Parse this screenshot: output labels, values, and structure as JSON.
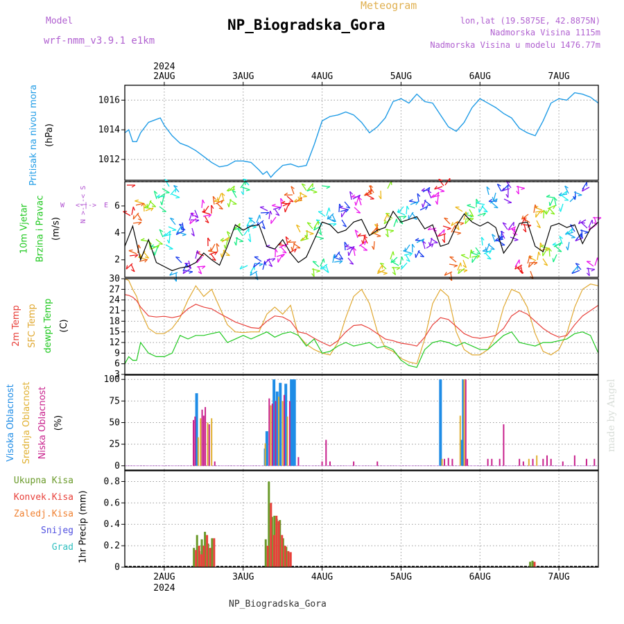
{
  "header": {
    "model_label": "Model",
    "model_name": "wrf-nmm_v3.9.1 e1km",
    "product": "Meteogram",
    "station": "NP_Biogradska_Gora",
    "coords": "lon,lat (19.5875E, 42.8875N)",
    "elevation": "Nadmorska Visina 1115m",
    "model_elevation": "Nadmorska Visina u modelu 1476.77m",
    "watermark": "made by Angel",
    "footer_station": "NP_Biogradska_Gora"
  },
  "colors": {
    "pressure": "#1e9be6",
    "temp": "#e8403a",
    "sfc_temp": "#e0a830",
    "dewpt": "#1ec81e",
    "high_cloud": "#1e8ce6",
    "mid_cloud": "#e0b030",
    "low_cloud": "#c8208c",
    "total_precip": "#6a9a2a",
    "conv_precip": "#e8403a",
    "frozen": "#f08030",
    "snow": "#5050e0",
    "graupel": "#30c0c0"
  },
  "chart_data": [
    {
      "type": "line",
      "panel": "pressure",
      "ylabel": [
        "Pritisak na nivou mora",
        "(hPa)"
      ],
      "top_axis": {
        "year": "2024",
        "ticks": [
          "2AUG",
          "3AUG",
          "4AUG",
          "5AUG",
          "6AUG",
          "7AUG"
        ]
      },
      "ylim": [
        1010.6,
        1017.0
      ],
      "yticks": [
        1012,
        1014,
        1016
      ],
      "x": [
        1.5,
        1.55,
        1.6,
        1.65,
        1.7,
        1.8,
        1.9,
        1.95,
        2.0,
        2.1,
        2.2,
        2.3,
        2.4,
        2.5,
        2.6,
        2.7,
        2.8,
        2.9,
        3.0,
        3.1,
        3.2,
        3.25,
        3.3,
        3.35,
        3.4,
        3.5,
        3.6,
        3.7,
        3.8,
        3.9,
        4.0,
        4.1,
        4.2,
        4.3,
        4.4,
        4.5,
        4.6,
        4.7,
        4.8,
        4.9,
        5.0,
        5.1,
        5.2,
        5.3,
        5.4,
        5.5,
        5.6,
        5.7,
        5.8,
        5.9,
        6.0,
        6.1,
        6.2,
        6.3,
        6.4,
        6.5,
        6.6,
        6.7,
        6.8,
        6.9,
        7.0,
        7.1,
        7.2,
        7.3,
        7.4,
        7.5
      ],
      "series": [
        {
          "values": [
            1013.8,
            1014.0,
            1013.2,
            1013.2,
            1013.8,
            1014.5,
            1014.7,
            1014.8,
            1014.3,
            1013.6,
            1013.1,
            1012.9,
            1012.6,
            1012.2,
            1011.8,
            1011.5,
            1011.6,
            1011.9,
            1011.9,
            1011.8,
            1011.3,
            1011.0,
            1011.2,
            1010.8,
            1011.1,
            1011.6,
            1011.7,
            1011.5,
            1011.6,
            1013.0,
            1014.6,
            1014.9,
            1015.0,
            1015.2,
            1015.0,
            1014.5,
            1013.8,
            1014.2,
            1014.8,
            1015.9,
            1016.1,
            1015.8,
            1016.4,
            1015.9,
            1015.8,
            1015.0,
            1014.2,
            1013.9,
            1014.5,
            1015.5,
            1016.1,
            1015.8,
            1015.5,
            1015.1,
            1014.8,
            1014.1,
            1013.8,
            1013.6,
            1014.6,
            1015.8,
            1016.1,
            1016.0,
            1016.5,
            1016.4,
            1016.2,
            1015.8
          ]
        }
      ]
    },
    {
      "type": "line",
      "panel": "wind",
      "ylabel": [
        "10m Vjetar",
        "Brzina i Pravac",
        "(m/s)"
      ],
      "compass": [
        "W",
        "E",
        "N",
        "S"
      ],
      "ylim": [
        0.7,
        7.8
      ],
      "yticks": [
        2,
        4,
        6
      ],
      "x": [
        1.5,
        1.6,
        1.7,
        1.8,
        1.9,
        2.0,
        2.1,
        2.2,
        2.3,
        2.4,
        2.5,
        2.6,
        2.7,
        2.8,
        2.9,
        3.0,
        3.1,
        3.2,
        3.3,
        3.4,
        3.5,
        3.6,
        3.7,
        3.8,
        3.9,
        4.0,
        4.1,
        4.2,
        4.3,
        4.4,
        4.5,
        4.6,
        4.7,
        4.8,
        4.9,
        5.0,
        5.1,
        5.2,
        5.3,
        5.4,
        5.5,
        5.6,
        5.7,
        5.8,
        5.9,
        6.0,
        6.1,
        6.2,
        6.3,
        6.4,
        6.5,
        6.6,
        6.7,
        6.8,
        6.9,
        7.0,
        7.1,
        7.2,
        7.3,
        7.4,
        7.5
      ],
      "series": [
        {
          "name": "speed",
          "values": [
            3.0,
            4.5,
            2.0,
            3.5,
            1.8,
            1.5,
            1.2,
            1.4,
            1.5,
            1.8,
            2.5,
            2.0,
            1.6,
            3.0,
            4.6,
            4.2,
            4.5,
            4.6,
            3.0,
            2.8,
            3.5,
            2.5,
            1.8,
            2.2,
            3.5,
            4.8,
            4.6,
            4.0,
            4.2,
            4.8,
            5.0,
            3.8,
            4.2,
            4.4,
            5.6,
            4.8,
            5.0,
            5.2,
            4.3,
            4.6,
            3.0,
            3.2,
            4.5,
            5.4,
            4.8,
            4.5,
            4.8,
            4.4,
            2.5,
            3.3,
            4.7,
            4.8,
            3.0,
            2.6,
            4.5,
            4.7,
            4.4,
            4.6,
            3.2,
            4.3,
            4.8
          ]
        }
      ]
    },
    {
      "type": "line",
      "panel": "temperature",
      "ylabel": [
        "2m Temp",
        "SFC Temp",
        "dewpt Temp",
        "(C)"
      ],
      "ylim": [
        3,
        30
      ],
      "yticks": [
        3,
        6,
        9,
        12,
        15,
        18,
        21,
        24,
        27,
        30
      ],
      "x": [
        1.5,
        1.55,
        1.6,
        1.65,
        1.7,
        1.8,
        1.9,
        2.0,
        2.1,
        2.2,
        2.3,
        2.4,
        2.5,
        2.6,
        2.7,
        2.8,
        2.9,
        3.0,
        3.1,
        3.2,
        3.3,
        3.4,
        3.5,
        3.6,
        3.7,
        3.8,
        3.9,
        4.0,
        4.1,
        4.2,
        4.3,
        4.4,
        4.5,
        4.6,
        4.7,
        4.8,
        4.9,
        5.0,
        5.1,
        5.2,
        5.3,
        5.4,
        5.5,
        5.6,
        5.7,
        5.8,
        5.9,
        6.0,
        6.1,
        6.2,
        6.3,
        6.4,
        6.5,
        6.6,
        6.7,
        6.8,
        6.9,
        7.0,
        7.1,
        7.2,
        7.3,
        7.4,
        7.5
      ],
      "series": [
        {
          "name": "2m Temp",
          "values": [
            25.5,
            25.3,
            24.8,
            23.8,
            22.0,
            19.5,
            19.2,
            19.4,
            19.0,
            19.5,
            21.5,
            22.8,
            22.0,
            21.5,
            20.2,
            19.0,
            17.8,
            17.0,
            16.2,
            16.0,
            18.0,
            19.5,
            19.2,
            18.0,
            15.0,
            14.5,
            13.2,
            12.0,
            11.0,
            12.5,
            15.0,
            16.8,
            17.0,
            16.0,
            14.5,
            13.0,
            12.5,
            11.8,
            11.5,
            11.0,
            13.5,
            17.0,
            19.0,
            18.5,
            16.5,
            14.5,
            13.5,
            13.2,
            13.5,
            14.0,
            16.0,
            19.5,
            21.0,
            20.0,
            18.0,
            16.0,
            14.5,
            13.5,
            14.0,
            17.0,
            19.5,
            21.0,
            22.5
          ]
        },
        {
          "name": "SFC Temp",
          "values": [
            30.0,
            29.5,
            27.0,
            25.0,
            21.0,
            16.0,
            14.5,
            14.5,
            16.0,
            19.0,
            24.0,
            28.0,
            25.0,
            27.0,
            22.0,
            17.0,
            15.0,
            14.8,
            15.0,
            15.0,
            20.0,
            22.0,
            20.0,
            22.5,
            14.0,
            11.5,
            10.0,
            9.0,
            8.5,
            12.0,
            19.0,
            25.0,
            27.0,
            23.0,
            15.0,
            10.5,
            9.5,
            7.5,
            6.5,
            6.0,
            13.0,
            23.0,
            27.0,
            25.0,
            15.0,
            10.0,
            8.5,
            8.5,
            10.0,
            14.0,
            22.0,
            27.0,
            26.0,
            22.0,
            14.5,
            9.5,
            8.5,
            10.0,
            14.5,
            22.0,
            27.0,
            28.5,
            28.0
          ]
        },
        {
          "name": "dewpt Temp",
          "values": [
            6.0,
            8.0,
            7.0,
            7.0,
            12.0,
            9.0,
            8.0,
            8.0,
            9.0,
            14.0,
            13.0,
            14.0,
            14.0,
            14.5,
            15.0,
            12.0,
            13.0,
            14.0,
            13.0,
            14.0,
            15.0,
            13.5,
            14.5,
            15.0,
            14.0,
            11.0,
            13.0,
            9.0,
            9.5,
            11.0,
            12.0,
            11.0,
            11.5,
            12.0,
            10.5,
            11.0,
            10.0,
            7.0,
            5.5,
            5.0,
            10.0,
            12.0,
            12.5,
            12.0,
            11.0,
            12.0,
            11.0,
            10.0,
            10.0,
            12.0,
            14.0,
            15.0,
            12.0,
            11.5,
            11.0,
            12.0,
            12.0,
            12.5,
            13.0,
            14.5,
            15.0,
            14.0,
            9.0
          ]
        }
      ]
    },
    {
      "type": "bar",
      "panel": "cloud_cover",
      "ylabel": [
        "Visoka Oblacnost",
        "Srednja Oblacnost",
        "Niska Oblacnost",
        "(%)"
      ],
      "ylim": [
        -5,
        105
      ],
      "yticks": [
        0,
        25,
        50,
        75,
        100
      ],
      "x": [
        2.37,
        2.39,
        2.41,
        2.43,
        2.46,
        2.48,
        2.5,
        2.52,
        2.55,
        2.57,
        2.6,
        2.62,
        2.64,
        3.28,
        3.3,
        3.33,
        3.35,
        3.37,
        3.39,
        3.41,
        3.43,
        3.45,
        3.47,
        3.5,
        3.52,
        3.54,
        3.56,
        3.59,
        3.61,
        3.63,
        3.65,
        3.7,
        4.0,
        4.05,
        4.1,
        4.4,
        4.7,
        5.5,
        5.52,
        5.55,
        5.6,
        5.65,
        5.75,
        5.77,
        5.79,
        5.8,
        5.82,
        5.84,
        6.1,
        6.15,
        6.25,
        6.3,
        6.5,
        6.55,
        6.62,
        6.67,
        6.72,
        6.8,
        6.85,
        6.9,
        7.05,
        7.2,
        7.35,
        7.45
      ],
      "series": [
        {
          "name": "Visoka Oblacnost",
          "values": [
            0,
            0,
            84,
            0,
            0,
            0,
            0,
            0,
            0,
            0,
            0,
            0,
            0,
            20,
            40,
            0,
            0,
            0,
            100,
            0,
            86,
            0,
            96,
            0,
            0,
            95,
            0,
            0,
            100,
            100,
            100,
            0,
            0,
            0,
            0,
            0,
            0,
            100,
            0,
            0,
            0,
            0,
            0,
            30,
            100,
            0,
            0,
            0,
            0,
            0,
            0,
            0,
            0,
            0,
            0,
            0,
            0,
            0,
            0,
            0,
            0,
            0,
            0,
            0
          ]
        },
        {
          "name": "Srednja Oblacnost",
          "values": [
            0,
            0,
            0,
            33,
            55,
            0,
            0,
            0,
            50,
            0,
            55,
            0,
            0,
            26,
            0,
            0,
            70,
            0,
            0,
            0,
            0,
            80,
            0,
            75,
            0,
            0,
            57,
            0,
            0,
            0,
            0,
            0,
            0,
            0,
            0,
            0,
            0,
            0,
            8,
            0,
            0,
            0,
            58,
            0,
            0,
            100,
            0,
            0,
            0,
            0,
            0,
            0,
            0,
            0,
            8,
            0,
            12,
            0,
            0,
            0,
            0,
            0,
            0,
            0
          ]
        },
        {
          "name": "Niska Oblacnost",
          "values": [
            53,
            57,
            0,
            0,
            0,
            65,
            58,
            68,
            0,
            48,
            0,
            0,
            5,
            0,
            0,
            78,
            0,
            72,
            0,
            75,
            0,
            0,
            0,
            0,
            82,
            0,
            0,
            75,
            0,
            0,
            0,
            10,
            5,
            30,
            5,
            5,
            5,
            0,
            0,
            8,
            9,
            8,
            0,
            0,
            0,
            0,
            100,
            8,
            8,
            8,
            8,
            48,
            8,
            5,
            0,
            8,
            0,
            8,
            12,
            8,
            5,
            12,
            8,
            8
          ]
        }
      ]
    },
    {
      "type": "bar",
      "panel": "precipitation",
      "ylabel": [
        "1hr Precip (mm)"
      ],
      "legend": [
        "Ukupna Kisa",
        "Konvek.Kisa",
        "Zaledj.Kisa",
        "Snijeg",
        "Grad"
      ],
      "bottom_axis": {
        "year": "2024",
        "ticks": [
          "2AUG",
          "3AUG",
          "4AUG",
          "5AUG",
          "6AUG",
          "7AUG"
        ]
      },
      "ylim": [
        0,
        0.9
      ],
      "yticks": [
        0,
        0.2,
        0.4,
        0.6,
        0.8
      ],
      "x": [
        2.38,
        2.42,
        2.45,
        2.48,
        2.52,
        2.56,
        2.61,
        3.29,
        3.33,
        3.37,
        3.4,
        3.43,
        3.47,
        3.51,
        3.55,
        3.58,
        6.64,
        6.67
      ],
      "series": [
        {
          "name": "Ukupna Kisa",
          "values": [
            0.18,
            0.3,
            0.15,
            0.26,
            0.33,
            0.22,
            0.27,
            0.26,
            0.8,
            0.47,
            0.48,
            0.45,
            0.44,
            0.27,
            0.19,
            0.14,
            0.05,
            0.06
          ]
        },
        {
          "name": "Konvek.Kisa",
          "values": [
            0.16,
            0.2,
            0.12,
            0.2,
            0.3,
            0.18,
            0.27,
            0.2,
            0.6,
            0.3,
            0.48,
            0.43,
            0.3,
            0.2,
            0.15,
            0.14,
            0.0,
            0.05
          ]
        }
      ]
    }
  ]
}
